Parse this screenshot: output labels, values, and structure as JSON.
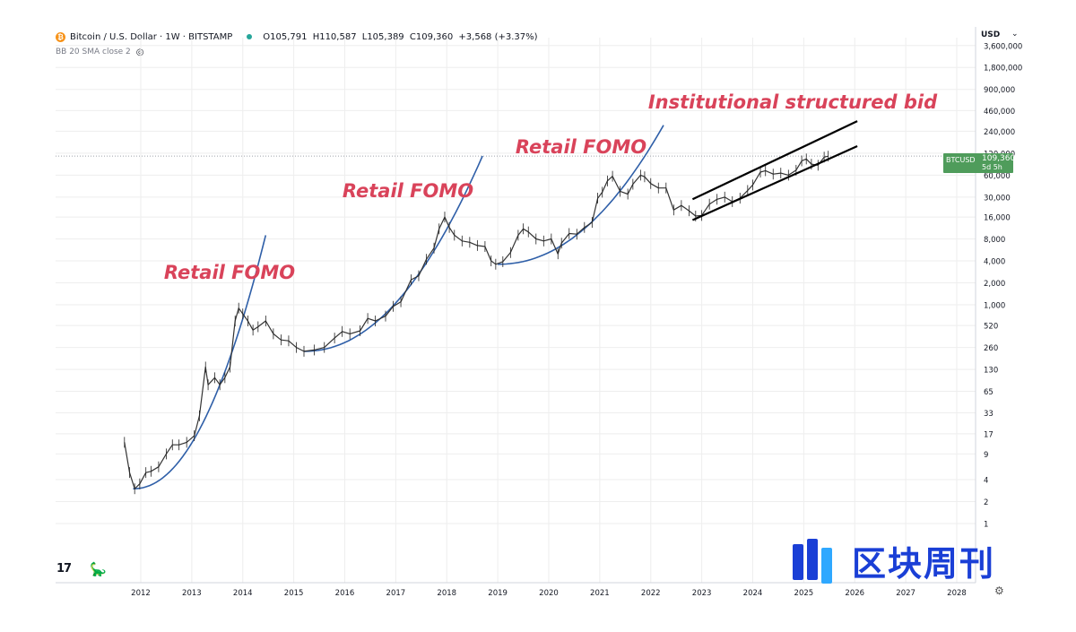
{
  "header": {
    "symbol_title": "Bitcoin / U.S. Dollar · 1W · BITSTAMP",
    "open": "O105,791",
    "high": "H110,587",
    "low": "L105,389",
    "close": "C109,360",
    "change": "+3,568 (+3.37%)",
    "indicator": "BB 20 SMA close 2"
  },
  "currency_label": "USD",
  "price_tag": {
    "symbol": "BTCUSD",
    "value": "109,360",
    "countdown": "5d 5h"
  },
  "watermark_text": "区块周刊",
  "colors": {
    "annotation": "#d9435a",
    "curve": "#2f5fa8",
    "channel": "#000000",
    "price_tag": "#4f9c5b",
    "watermark": "#1a3fd6"
  },
  "icons": [
    "bitcoin-coin-icon",
    "live-dot-icon",
    "eye-hidden-icon",
    "chevron-down-icon",
    "tradingview-logo-icon",
    "dino-icon",
    "settings-icon"
  ],
  "chart_data": {
    "type": "line",
    "title": "",
    "xlabel": "",
    "ylabel": "",
    "y_scale": "log",
    "x_ticks": [
      "2012",
      "2013",
      "2014",
      "2015",
      "2016",
      "2017",
      "2018",
      "2019",
      "2020",
      "2021",
      "2022",
      "2023",
      "2024",
      "2025",
      "2026",
      "2027",
      "2028"
    ],
    "y_ticks": [
      "1",
      "2",
      "4",
      "9",
      "17",
      "33",
      "65",
      "130",
      "260",
      "520",
      "1,000",
      "2,000",
      "4,000",
      "8,000",
      "16,000",
      "30,000",
      "60,000",
      "120,000",
      "240,000",
      "460,000",
      "900,000",
      "1,800,000",
      "3,600,000"
    ],
    "series": [
      {
        "name": "",
        "x": [
          2011.68,
          2011.78,
          2011.88,
          2011.98,
          2012.1,
          2012.2,
          2012.35,
          2012.5,
          2012.62,
          2012.75,
          2012.9,
          2013.05,
          2013.15,
          2013.27,
          2013.32,
          2013.45,
          2013.55,
          2013.65,
          2013.75,
          2013.85,
          2013.92,
          2014.0,
          2014.1,
          2014.2,
          2014.3,
          2014.45,
          2014.6,
          2014.75,
          2014.9,
          2015.05,
          2015.2,
          2015.4,
          2015.6,
          2015.8,
          2015.95,
          2016.1,
          2016.3,
          2016.45,
          2016.6,
          2016.8,
          2016.95,
          2017.1,
          2017.3,
          2017.45,
          2017.6,
          2017.75,
          2017.85,
          2017.96,
          2018.05,
          2018.15,
          2018.3,
          2018.45,
          2018.6,
          2018.75,
          2018.87,
          2018.96,
          2019.1,
          2019.25,
          2019.4,
          2019.5,
          2019.6,
          2019.75,
          2019.9,
          2020.05,
          2020.18,
          2020.25,
          2020.4,
          2020.55,
          2020.7,
          2020.85,
          2020.96,
          2021.05,
          2021.15,
          2021.25,
          2021.4,
          2021.55,
          2021.65,
          2021.8,
          2021.88,
          2022.0,
          2022.15,
          2022.3,
          2022.45,
          2022.6,
          2022.75,
          2022.88,
          2023.0,
          2023.15,
          2023.3,
          2023.45,
          2023.6,
          2023.75,
          2023.9,
          2024.0,
          2024.15,
          2024.25,
          2024.4,
          2024.55,
          2024.7,
          2024.85,
          2024.96,
          2025.05,
          2025.15,
          2025.28,
          2025.4,
          2025.48
        ],
        "y": [
          13,
          5,
          3,
          3.5,
          5,
          5.2,
          6,
          9,
          12,
          12,
          13,
          16,
          30,
          140,
          80,
          100,
          80,
          100,
          140,
          600,
          900,
          750,
          600,
          450,
          500,
          600,
          400,
          330,
          320,
          260,
          230,
          240,
          260,
          350,
          430,
          400,
          440,
          650,
          600,
          700,
          950,
          1100,
          2200,
          2500,
          4200,
          6000,
          11000,
          16000,
          11500,
          9000,
          7500,
          7200,
          6500,
          6300,
          4000,
          3600,
          3900,
          5200,
          9000,
          11000,
          10000,
          8000,
          7500,
          8000,
          5000,
          7000,
          9500,
          9300,
          11500,
          13500,
          29000,
          35000,
          50000,
          58000,
          36000,
          33000,
          45000,
          60000,
          57000,
          46000,
          40000,
          40000,
          20000,
          23000,
          19500,
          16500,
          16800,
          24000,
          28000,
          30000,
          26000,
          29000,
          37000,
          44000,
          66000,
          69000,
          62000,
          64000,
          60000,
          70000,
          94000,
          100000,
          85000,
          82000,
          106000,
          109360
        ]
      }
    ],
    "annotations": [
      {
        "text": "Retail FOMO"
      },
      {
        "text": "Retail FOMO"
      },
      {
        "text": "Retail FOMO"
      },
      {
        "text": "Institutional structured bid"
      }
    ]
  }
}
